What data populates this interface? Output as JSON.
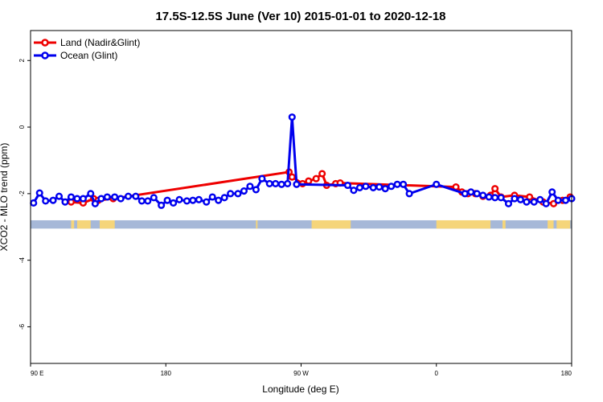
{
  "chart_data": {
    "type": "line",
    "title": "17.5S-12.5S June (Ver 10)   2015-01-01 to 2020-12-18",
    "xlabel": "Longitude (deg E)",
    "ylabel": "XCO2 - MLO trend (ppm)",
    "xlim": [
      90,
      450
    ],
    "ylim": [
      -7.1,
      2.9
    ],
    "x_ticks": [
      {
        "value": 90,
        "label": "90 E"
      },
      {
        "value": 180,
        "label": "180"
      },
      {
        "value": 270,
        "label": "90 W"
      },
      {
        "value": 360,
        "label": "0"
      },
      {
        "value": 450,
        "label": "180"
      }
    ],
    "y_ticks": [
      {
        "value": 2,
        "label": "2"
      },
      {
        "value": 0,
        "label": "0"
      },
      {
        "value": -2,
        "label": "-2"
      },
      {
        "value": -4,
        "label": "-4"
      },
      {
        "value": -6,
        "label": "-6"
      }
    ],
    "legend_position": "top-left",
    "series": [
      {
        "name": "Land (Nadir&Glint)",
        "color": "#ee0000",
        "points": [
          [
            117,
            -2.25
          ],
          [
            125,
            -2.28
          ],
          [
            132,
            -2.15
          ],
          [
            135,
            -2.2
          ],
          [
            145,
            -2.15
          ],
          [
            262,
            -1.35
          ],
          [
            264,
            -1.5
          ],
          [
            271,
            -1.7
          ],
          [
            275,
            -1.62
          ],
          [
            280,
            -1.55
          ],
          [
            284,
            -1.4
          ],
          [
            287,
            -1.75
          ],
          [
            293,
            -1.7
          ],
          [
            296,
            -1.68
          ],
          [
            373,
            -1.8
          ],
          [
            377,
            -1.95
          ],
          [
            381,
            -2.0
          ],
          [
            386,
            -2.0
          ],
          [
            391,
            -2.08
          ],
          [
            396,
            -2.05
          ],
          [
            399,
            -1.85
          ],
          [
            403,
            -2.1
          ],
          [
            412,
            -2.05
          ],
          [
            422,
            -2.1
          ],
          [
            431,
            -2.25
          ],
          [
            438,
            -2.3
          ],
          [
            444,
            -2.2
          ],
          [
            449,
            -2.1
          ]
        ]
      },
      {
        "name": "Ocean (Glint)",
        "color": "#0000ee",
        "points": [
          [
            92,
            -2.28
          ],
          [
            96,
            -1.98
          ],
          [
            100,
            -2.22
          ],
          [
            105,
            -2.2
          ],
          [
            109,
            -2.08
          ],
          [
            113,
            -2.25
          ],
          [
            117,
            -2.1
          ],
          [
            121,
            -2.15
          ],
          [
            125,
            -2.15
          ],
          [
            130,
            -2.0
          ],
          [
            133,
            -2.3
          ],
          [
            137,
            -2.15
          ],
          [
            141,
            -2.1
          ],
          [
            146,
            -2.1
          ],
          [
            150,
            -2.15
          ],
          [
            155,
            -2.08
          ],
          [
            160,
            -2.08
          ],
          [
            164,
            -2.22
          ],
          [
            168,
            -2.22
          ],
          [
            172,
            -2.12
          ],
          [
            177,
            -2.35
          ],
          [
            181,
            -2.2
          ],
          [
            185,
            -2.28
          ],
          [
            189,
            -2.18
          ],
          [
            194,
            -2.22
          ],
          [
            198,
            -2.2
          ],
          [
            202,
            -2.18
          ],
          [
            207,
            -2.25
          ],
          [
            211,
            -2.1
          ],
          [
            215,
            -2.2
          ],
          [
            219,
            -2.12
          ],
          [
            223,
            -2.0
          ],
          [
            228,
            -2.0
          ],
          [
            232,
            -1.92
          ],
          [
            236,
            -1.78
          ],
          [
            240,
            -1.88
          ],
          [
            244,
            -1.55
          ],
          [
            249,
            -1.7
          ],
          [
            253,
            -1.7
          ],
          [
            257,
            -1.72
          ],
          [
            261,
            -1.7
          ],
          [
            264,
            0.3
          ],
          [
            267,
            -1.72
          ],
          [
            301,
            -1.75
          ],
          [
            305,
            -1.9
          ],
          [
            309,
            -1.82
          ],
          [
            313,
            -1.78
          ],
          [
            318,
            -1.82
          ],
          [
            322,
            -1.8
          ],
          [
            326,
            -1.85
          ],
          [
            330,
            -1.78
          ],
          [
            334,
            -1.72
          ],
          [
            338,
            -1.72
          ],
          [
            342,
            -2.0
          ],
          [
            360,
            -1.72
          ],
          [
            379,
            -2.0
          ],
          [
            383,
            -1.95
          ],
          [
            387,
            -2.0
          ],
          [
            391,
            -2.05
          ],
          [
            395,
            -2.1
          ],
          [
            399,
            -2.12
          ],
          [
            403,
            -2.12
          ],
          [
            408,
            -2.3
          ],
          [
            412,
            -2.15
          ],
          [
            416,
            -2.18
          ],
          [
            420,
            -2.25
          ],
          [
            425,
            -2.25
          ],
          [
            429,
            -2.18
          ],
          [
            433,
            -2.3
          ],
          [
            437,
            -1.95
          ],
          [
            441,
            -2.2
          ],
          [
            446,
            -2.2
          ],
          [
            450,
            -2.15
          ]
        ]
      }
    ],
    "land_mask": {
      "colors": {
        "ocean": "#a6b8d8",
        "land": "#f5d57a"
      },
      "band_y": [
        -3.05,
        -2.8
      ],
      "land_segments": [
        [
          117,
          119
        ],
        [
          121,
          130
        ],
        [
          136,
          146
        ],
        [
          240,
          241
        ],
        [
          277,
          303
        ],
        [
          360,
          396
        ],
        [
          404,
          406
        ],
        [
          434,
          438
        ],
        [
          440,
          449
        ]
      ]
    }
  }
}
